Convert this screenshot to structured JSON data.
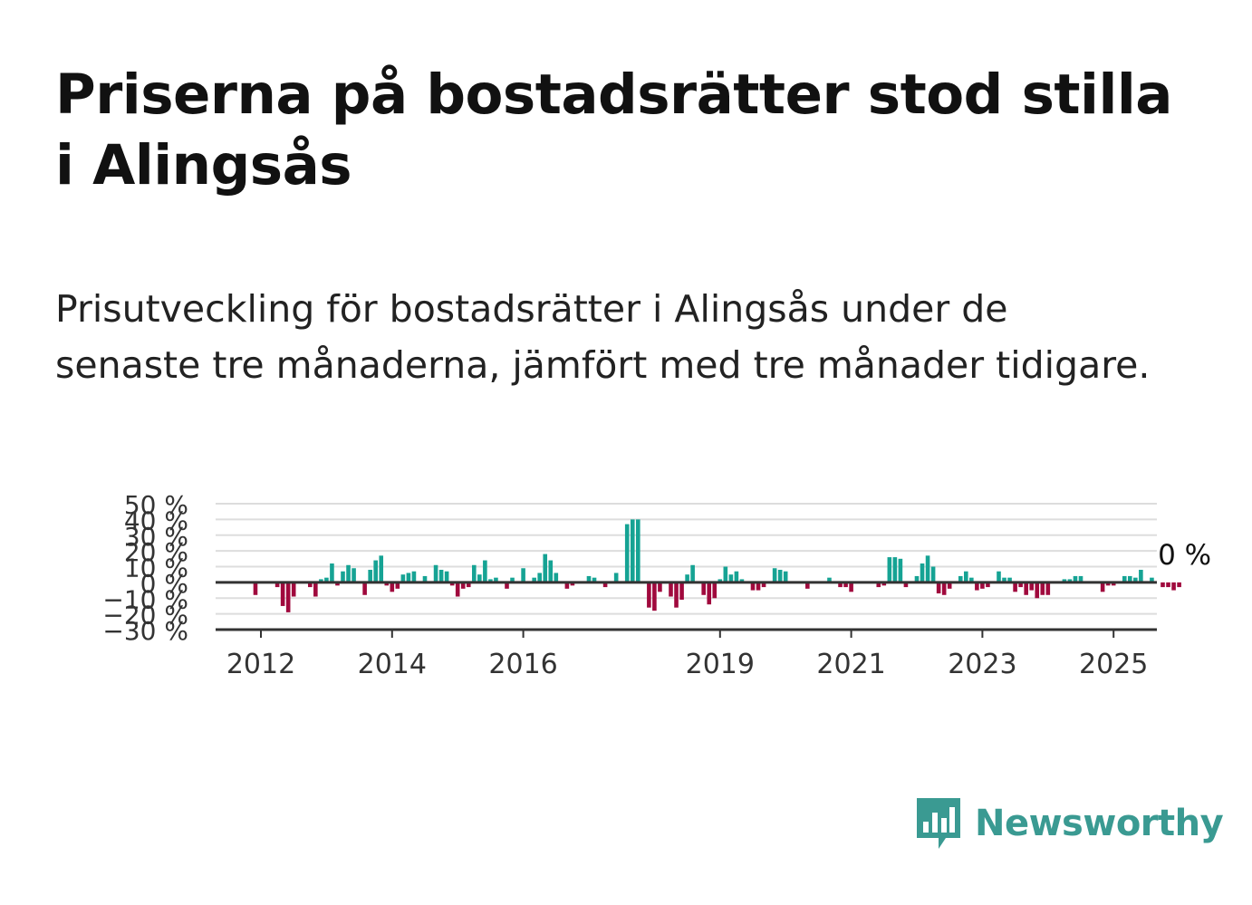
{
  "header": {
    "title": "Priserna på bostadsrätter stod stilla i Alingsås",
    "subtitle": "Prisutveckling för bostadsrätter i Alingsås under de senaste tre månaderna, jämfört med tre månader tidigare."
  },
  "brand": {
    "name": "Newsworthy",
    "icon": "newsworthy-logo-icon",
    "color": "#3a9a92"
  },
  "colors": {
    "positive": "#16a394",
    "negative": "#a0093d",
    "grid": "#dddddd",
    "zero": "#333333"
  },
  "chart_data": {
    "type": "bar",
    "title": "",
    "xlabel": "",
    "ylabel": "",
    "ylim": [
      -30,
      50
    ],
    "yticks": [
      50,
      40,
      30,
      20,
      10,
      0,
      -10,
      -20,
      -30
    ],
    "ytick_labels": [
      "50 %",
      "40 %",
      "30 %",
      "20 %",
      "10 %",
      "0 %",
      "−10 %",
      "−20 %",
      "−30 %"
    ],
    "xticks": [
      {
        "label": "2012",
        "x": 2012.0
      },
      {
        "label": "2014",
        "x": 2014.0
      },
      {
        "label": "2016",
        "x": 2016.0
      },
      {
        "label": "2019",
        "x": 2019.0
      },
      {
        "label": "2021",
        "x": 2021.0
      },
      {
        "label": "2023",
        "x": 2023.0
      },
      {
        "label": "2025",
        "x": 2025.0
      }
    ],
    "grid": true,
    "annotation": "0 %",
    "start_month": "2011-09",
    "values": [
      0,
      0,
      0,
      -8,
      0,
      0,
      0,
      -3,
      -15,
      -19,
      -9,
      0,
      0,
      -3,
      -9,
      2,
      3,
      12,
      -2,
      7,
      11,
      9,
      0,
      -8,
      8,
      14,
      17,
      -2,
      -6,
      -4,
      5,
      6,
      7,
      0,
      4,
      0,
      11,
      8,
      7,
      -2,
      -9,
      -4,
      -3,
      11,
      5,
      14,
      2,
      3,
      0,
      -4,
      3,
      0,
      9,
      0,
      3,
      6,
      18,
      14,
      6,
      0,
      -4,
      -2,
      0,
      0,
      4,
      3,
      0,
      -3,
      0,
      6,
      0,
      37,
      40,
      40,
      0,
      -16,
      -18,
      -6,
      0,
      -9,
      -16,
      -11,
      5,
      11,
      0,
      -8,
      -14,
      -10,
      2,
      10,
      5,
      7,
      2,
      0,
      -5,
      -5,
      -3,
      0,
      9,
      8,
      7,
      0,
      0,
      0,
      -4,
      0,
      0,
      0,
      3,
      0,
      -3,
      -3,
      -6,
      0,
      0,
      0,
      0,
      -3,
      -2,
      16,
      16,
      15,
      -3,
      0,
      4,
      12,
      17,
      10,
      -7,
      -8,
      -4,
      0,
      4,
      7,
      3,
      -5,
      -4,
      -3,
      0,
      7,
      3,
      3,
      -6,
      -3,
      -8,
      -5,
      -10,
      -8,
      -8,
      0,
      0,
      2,
      2,
      4,
      4,
      0,
      0,
      0,
      -6,
      -2,
      -2,
      0,
      4,
      4,
      3,
      8,
      0,
      3,
      0,
      -3,
      -3,
      -5,
      -3,
      0
    ]
  }
}
